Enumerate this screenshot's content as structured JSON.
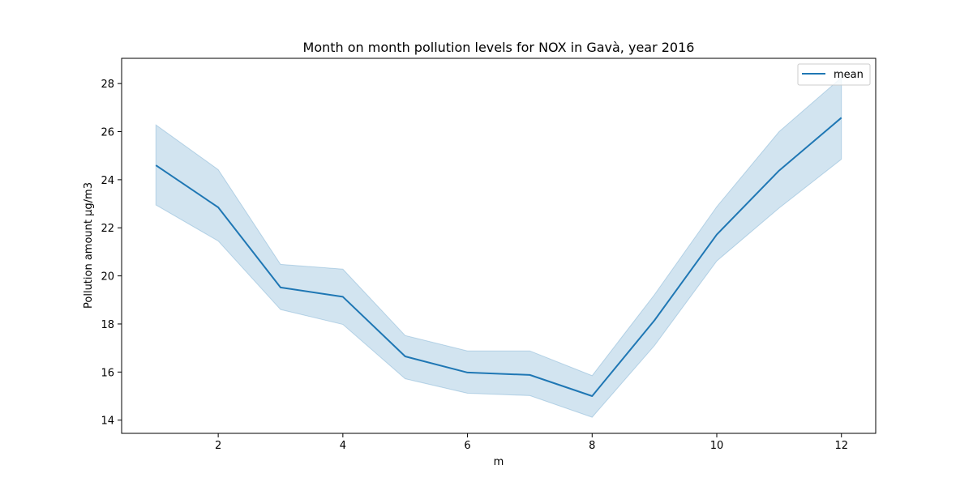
{
  "chart_data": {
    "type": "line",
    "title": "Month on month pollution levels for NOX in Gavà, year 2016",
    "xlabel": "m",
    "ylabel": "Pollution amount µg/m3",
    "xlim": [
      0.45,
      12.55
    ],
    "ylim": [
      13.45,
      29.05
    ],
    "x_ticks": [
      2,
      4,
      6,
      8,
      10,
      12
    ],
    "y_ticks": [
      14,
      16,
      18,
      20,
      22,
      24,
      26,
      28
    ],
    "grid": false,
    "legend_position": "top-right",
    "x": [
      1,
      2,
      3,
      4,
      5,
      6,
      7,
      8,
      9,
      10,
      11,
      12
    ],
    "series": [
      {
        "name": "mean",
        "color": "#1f77b4",
        "values": [
          24.6,
          22.85,
          19.52,
          19.13,
          16.65,
          15.98,
          15.88,
          15.0,
          18.15,
          21.72,
          24.38,
          26.58
        ]
      }
    ],
    "confidence_band": {
      "color": "#1f77b4",
      "opacity": 0.2,
      "lower": [
        22.95,
        21.45,
        18.6,
        17.98,
        15.72,
        15.12,
        15.02,
        14.12,
        17.1,
        20.62,
        22.82,
        24.85
      ],
      "upper": [
        26.28,
        24.42,
        20.48,
        20.28,
        17.52,
        16.88,
        16.88,
        15.85,
        19.22,
        22.88,
        26.0,
        28.25
      ]
    }
  }
}
